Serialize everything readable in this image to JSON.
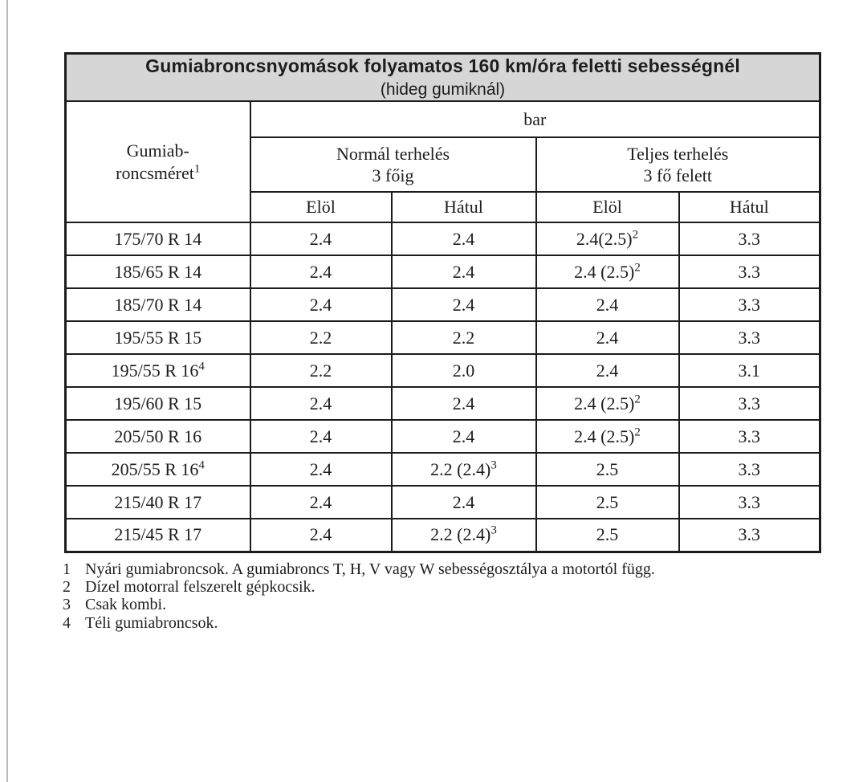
{
  "colors": {
    "header_bg": "#d6d6d6",
    "border": "#1c1c1c",
    "text": "#1d1d1d",
    "page_edge_line": "#b8b8b8",
    "page_bg": "#ffffff"
  },
  "title": {
    "line1": "Gumiabroncsnyomások folyamatos 160 km/óra feletti sebességnél",
    "line2": "(hideg gumiknál)"
  },
  "table": {
    "size_header": {
      "line1": "Gumiab-",
      "line2": "roncsméret",
      "sup": "1"
    },
    "unit_header": "bar",
    "load_headers": [
      {
        "line1": "Normál terhelés",
        "line2": "3 főig"
      },
      {
        "line1": "Teljes terhelés",
        "line2": "3 fő felett"
      }
    ],
    "position_headers": [
      "Elöl",
      "Hátul",
      "Elöl",
      "Hátul"
    ],
    "rows": [
      {
        "size": {
          "t": "175/70 R 14",
          "s": ""
        },
        "cells": [
          {
            "t": "2.4",
            "s": ""
          },
          {
            "t": "2.4",
            "s": ""
          },
          {
            "t": "2.4(2.5)",
            "s": "2"
          },
          {
            "t": "3.3",
            "s": ""
          }
        ]
      },
      {
        "size": {
          "t": "185/65 R 14",
          "s": ""
        },
        "cells": [
          {
            "t": "2.4",
            "s": ""
          },
          {
            "t": "2.4",
            "s": ""
          },
          {
            "t": "2.4 (2.5)",
            "s": "2"
          },
          {
            "t": "3.3",
            "s": ""
          }
        ]
      },
      {
        "size": {
          "t": "185/70 R 14",
          "s": ""
        },
        "cells": [
          {
            "t": "2.4",
            "s": ""
          },
          {
            "t": "2.4",
            "s": ""
          },
          {
            "t": "2.4",
            "s": ""
          },
          {
            "t": "3.3",
            "s": ""
          }
        ]
      },
      {
        "size": {
          "t": "195/55 R 15",
          "s": ""
        },
        "cells": [
          {
            "t": "2.2",
            "s": ""
          },
          {
            "t": "2.2",
            "s": ""
          },
          {
            "t": "2.4",
            "s": ""
          },
          {
            "t": "3.3",
            "s": ""
          }
        ]
      },
      {
        "size": {
          "t": "195/55 R 16",
          "s": "4"
        },
        "cells": [
          {
            "t": "2.2",
            "s": ""
          },
          {
            "t": "2.0",
            "s": ""
          },
          {
            "t": "2.4",
            "s": ""
          },
          {
            "t": "3.1",
            "s": ""
          }
        ]
      },
      {
        "size": {
          "t": "195/60 R 15",
          "s": ""
        },
        "cells": [
          {
            "t": "2.4",
            "s": ""
          },
          {
            "t": "2.4",
            "s": ""
          },
          {
            "t": "2.4 (2.5)",
            "s": "2"
          },
          {
            "t": "3.3",
            "s": ""
          }
        ]
      },
      {
        "size": {
          "t": "205/50 R 16",
          "s": ""
        },
        "cells": [
          {
            "t": "2.4",
            "s": ""
          },
          {
            "t": "2.4",
            "s": ""
          },
          {
            "t": "2.4 (2.5)",
            "s": "2"
          },
          {
            "t": "3.3",
            "s": ""
          }
        ]
      },
      {
        "size": {
          "t": "205/55 R 16",
          "s": "4"
        },
        "cells": [
          {
            "t": "2.4",
            "s": ""
          },
          {
            "t": "2.2 (2.4)",
            "s": "3"
          },
          {
            "t": "2.5",
            "s": ""
          },
          {
            "t": "3.3",
            "s": ""
          }
        ]
      },
      {
        "size": {
          "t": "215/40 R 17",
          "s": ""
        },
        "cells": [
          {
            "t": "2.4",
            "s": ""
          },
          {
            "t": "2.4",
            "s": ""
          },
          {
            "t": "2.5",
            "s": ""
          },
          {
            "t": "3.3",
            "s": ""
          }
        ]
      },
      {
        "size": {
          "t": "215/45 R 17",
          "s": ""
        },
        "cells": [
          {
            "t": "2.4",
            "s": ""
          },
          {
            "t": "2.2 (2.4)",
            "s": "3"
          },
          {
            "t": "2.5",
            "s": ""
          },
          {
            "t": "3.3",
            "s": ""
          }
        ]
      }
    ]
  },
  "footnotes": [
    {
      "num": "1",
      "text": "Nyári gumiabroncsok. A gumiabroncs T, H, V vagy W sebességosztálya a motortól függ."
    },
    {
      "num": "2",
      "text": "Dízel motorral felszerelt gépkocsik."
    },
    {
      "num": "3",
      "text": "Csak kombi."
    },
    {
      "num": "4",
      "text": "Téli gumiabroncsok."
    }
  ]
}
